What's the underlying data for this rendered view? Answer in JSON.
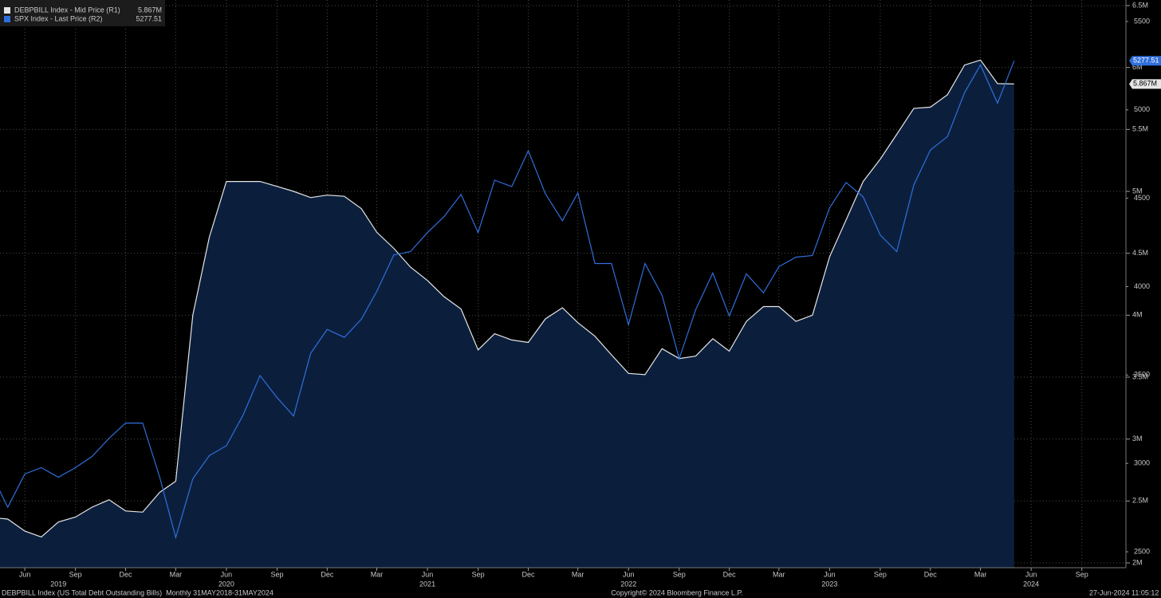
{
  "chart_data": {
    "type": "line",
    "legend_position": "top-left",
    "grid": true,
    "fill_under": "DEBPBILL Index - Mid Price (R1)",
    "fill_color": "#0b1f3d",
    "x": [
      "2019-04",
      "2019-05",
      "2019-06",
      "2019-07",
      "2019-08",
      "2019-09",
      "2019-10",
      "2019-11",
      "2019-12",
      "2020-01",
      "2020-02",
      "2020-03",
      "2020-04",
      "2020-05",
      "2020-06",
      "2020-07",
      "2020-08",
      "2020-09",
      "2020-10",
      "2020-11",
      "2020-12",
      "2021-01",
      "2021-02",
      "2021-03",
      "2021-04",
      "2021-05",
      "2021-06",
      "2021-07",
      "2021-08",
      "2021-09",
      "2021-10",
      "2021-11",
      "2021-12",
      "2022-01",
      "2022-02",
      "2022-03",
      "2022-04",
      "2022-05",
      "2022-06",
      "2022-07",
      "2022-08",
      "2022-09",
      "2022-10",
      "2022-11",
      "2022-12",
      "2023-01",
      "2023-02",
      "2023-03",
      "2023-04",
      "2023-05",
      "2023-06",
      "2023-07",
      "2023-08",
      "2023-09",
      "2023-10",
      "2023-11",
      "2023-12",
      "2024-01",
      "2024-02",
      "2024-03",
      "2024-04",
      "2024-05"
    ],
    "xlim": [
      "2019-04-17",
      "2024-11-20"
    ],
    "xticks": [
      {
        "value": "2019-06",
        "label": "Jun"
      },
      {
        "value": "2019-09",
        "label": "Sep"
      },
      {
        "value": "2019-12",
        "label": "Dec"
      },
      {
        "value": "2020-03",
        "label": "Mar"
      },
      {
        "value": "2020-06",
        "label": "Jun"
      },
      {
        "value": "2020-09",
        "label": "Sep"
      },
      {
        "value": "2020-12",
        "label": "Dec"
      },
      {
        "value": "2021-03",
        "label": "Mar"
      },
      {
        "value": "2021-06",
        "label": "Jun"
      },
      {
        "value": "2021-09",
        "label": "Sep"
      },
      {
        "value": "2021-12",
        "label": "Dec"
      },
      {
        "value": "2022-03",
        "label": "Mar"
      },
      {
        "value": "2022-06",
        "label": "Jun"
      },
      {
        "value": "2022-09",
        "label": "Sep"
      },
      {
        "value": "2022-12",
        "label": "Dec"
      },
      {
        "value": "2023-03",
        "label": "Mar"
      },
      {
        "value": "2023-06",
        "label": "Jun"
      },
      {
        "value": "2023-09",
        "label": "Sep"
      },
      {
        "value": "2023-12",
        "label": "Dec"
      },
      {
        "value": "2024-03",
        "label": "Mar"
      },
      {
        "value": "2024-06",
        "label": "Jun"
      },
      {
        "value": "2024-09",
        "label": "Sep"
      }
    ],
    "year_labels": [
      {
        "value": "2019-08",
        "label": "2019"
      },
      {
        "value": "2020-06",
        "label": "2020"
      },
      {
        "value": "2021-06",
        "label": "2021"
      },
      {
        "value": "2022-06",
        "label": "2022"
      },
      {
        "value": "2023-06",
        "label": "2023"
      },
      {
        "value": "2024-06",
        "label": "2024"
      }
    ],
    "ylim": [
      2,
      6.5
    ],
    "yticks": [
      {
        "value": 2,
        "label": "2M"
      },
      {
        "value": 2.5,
        "label": "2.5M"
      },
      {
        "value": 3,
        "label": "3M"
      },
      {
        "value": 3.5,
        "label": "3.5M"
      },
      {
        "value": 4,
        "label": "4M"
      },
      {
        "value": 4.5,
        "label": "4.5M"
      },
      {
        "value": 5,
        "label": "5M"
      },
      {
        "value": 5.5,
        "label": "5.5M"
      },
      {
        "value": 6,
        "label": "6M"
      },
      {
        "value": 6.5,
        "label": "6.5M"
      }
    ],
    "y2lim": [
      2437,
      5590
    ],
    "y2ticks": [
      2500,
      3000,
      3500,
      4000,
      4500,
      5000,
      5500
    ],
    "series": [
      {
        "name": "DEBPBILL Index - Mid Price (R1)",
        "color": "#e6e6e6",
        "axis": "y",
        "last_label": "5.867M",
        "values": [
          2.367,
          2.354,
          2.257,
          2.21,
          2.33,
          2.37,
          2.45,
          2.51,
          2.42,
          2.41,
          2.57,
          2.66,
          4.0,
          4.63,
          5.08,
          5.08,
          5.08,
          5.04,
          5.0,
          4.95,
          4.97,
          4.96,
          4.86,
          4.67,
          4.54,
          4.39,
          4.28,
          4.15,
          4.05,
          3.72,
          3.85,
          3.8,
          3.78,
          3.97,
          4.06,
          3.94,
          3.83,
          3.68,
          3.53,
          3.52,
          3.73,
          3.65,
          3.67,
          3.81,
          3.71,
          3.95,
          4.07,
          4.07,
          3.95,
          4.0,
          4.47,
          4.77,
          5.08,
          5.26,
          5.46,
          5.67,
          5.68,
          5.78,
          6.02,
          6.06,
          5.87,
          5.867
        ]
      },
      {
        "name": "SPX Index - Last Price (R2)",
        "color": "#2f6fdc",
        "axis": "y2",
        "values": [
          2946,
          2752,
          2940,
          2976,
          2922,
          2976,
          3039,
          3142,
          3228,
          3228,
          2922,
          2581,
          2913,
          3044,
          3100,
          3271,
          3497,
          3372,
          3268,
          3623,
          3758,
          3713,
          3816,
          3973,
          4180,
          4198,
          4306,
          4396,
          4522,
          4306,
          4602,
          4566,
          4769,
          4526,
          4373,
          4530,
          4131,
          4131,
          3785,
          4131,
          3951,
          3592,
          3870,
          4077,
          3834,
          4072,
          3965,
          4113,
          4167,
          4176,
          4445,
          4589,
          4508,
          4292,
          4198,
          4575,
          4773,
          4849,
          5097,
          5254,
          5038,
          5277.51
        ]
      }
    ],
    "footer": {
      "left": "DEBPBILL Index (US Total Debt Outstanding Bills)  Monthly 31MAY2018-31MAY2024",
      "center": "Copyright© 2024 Bloomberg Finance L.P.",
      "right": "27-Jun-2024 11:05:12"
    }
  }
}
